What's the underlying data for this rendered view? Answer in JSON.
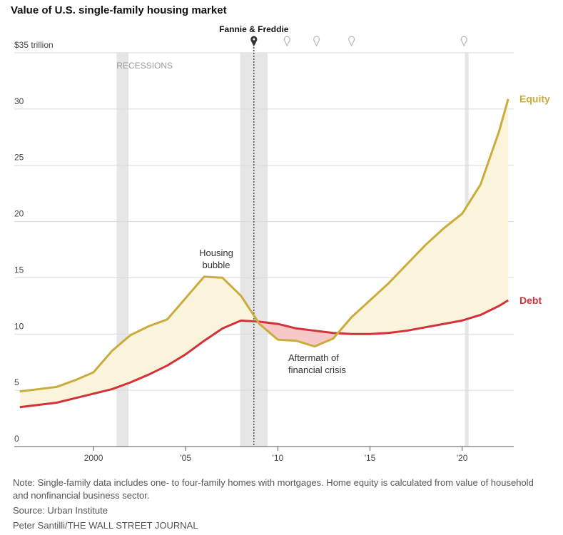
{
  "title": "Value of U.S. single-family housing market",
  "note": "Note: Single-family data includes one- to four-family homes with mortgages. Home equity is calculated from value of household and nonfinancial business sector.",
  "source": "Source: Urban Institute",
  "credit": "Peter Santilli/THE WALL STREET JOURNAL",
  "colors": {
    "equity": "#c9ac3c",
    "debt": "#d23238",
    "equity_fill": "#fbf4dc",
    "deficit_fill": "#f6c9c8",
    "recession": "#e6e6e6",
    "grid": "#d9d9d9"
  },
  "chart_data": {
    "type": "area",
    "title": "Value of U.S. single-family housing market",
    "y_unit_label": "$35 trillion",
    "ylim": [
      0,
      35
    ],
    "xlim": [
      1995.7,
      2022.8
    ],
    "y_ticks": [
      {
        "value": 35,
        "label": "$35 trillion"
      },
      {
        "value": 30,
        "label": "30"
      },
      {
        "value": 25,
        "label": "25"
      },
      {
        "value": 20,
        "label": "20"
      },
      {
        "value": 15,
        "label": "15"
      },
      {
        "value": 10,
        "label": "10"
      },
      {
        "value": 5,
        "label": "5"
      },
      {
        "value": 0,
        "label": "0"
      }
    ],
    "x_ticks": [
      {
        "value": 2000,
        "label": "2000"
      },
      {
        "value": 2005,
        "label": "'05"
      },
      {
        "value": 2010,
        "label": "'10"
      },
      {
        "value": 2015,
        "label": "'15"
      },
      {
        "value": 2020,
        "label": "'20"
      }
    ],
    "grid": true,
    "series": [
      {
        "name": "Equity",
        "x": [
          1996,
          1997,
          1998,
          1999,
          2000,
          2001,
          2002,
          2003,
          2004,
          2005,
          2006,
          2007,
          2008,
          2009,
          2010,
          2011,
          2012,
          2013,
          2014,
          2015,
          2016,
          2017,
          2018,
          2019,
          2020,
          2021,
          2022,
          2022.5
        ],
        "values": [
          4.9,
          5.1,
          5.3,
          5.9,
          6.6,
          8.5,
          9.9,
          10.7,
          11.3,
          13.2,
          15.1,
          15.0,
          13.4,
          10.9,
          9.5,
          9.4,
          8.9,
          9.6,
          11.5,
          13.0,
          14.5,
          16.2,
          17.9,
          19.4,
          20.7,
          23.3,
          28.0,
          30.9
        ]
      },
      {
        "name": "Debt",
        "x": [
          1996,
          1997,
          1998,
          1999,
          2000,
          2001,
          2002,
          2003,
          2004,
          2005,
          2006,
          2007,
          2008,
          2009,
          2010,
          2011,
          2012,
          2013,
          2014,
          2015,
          2016,
          2017,
          2018,
          2019,
          2020,
          2021,
          2022,
          2022.5
        ],
        "values": [
          3.5,
          3.7,
          3.9,
          4.3,
          4.7,
          5.1,
          5.7,
          6.4,
          7.2,
          8.2,
          9.4,
          10.5,
          11.2,
          11.1,
          10.9,
          10.5,
          10.3,
          10.1,
          10.0,
          10.0,
          10.1,
          10.3,
          10.6,
          10.9,
          11.2,
          11.7,
          12.5,
          13.0
        ]
      }
    ],
    "series_labels": [
      {
        "name": "Equity",
        "text": "Equity"
      },
      {
        "name": "Debt",
        "text": "Debt"
      }
    ],
    "recessions": [
      {
        "start": 2001.25,
        "end": 2001.9
      },
      {
        "start": 2007.95,
        "end": 2009.45
      },
      {
        "start": 2020.15,
        "end": 2020.35
      }
    ],
    "recessions_label": "RECESSIONS",
    "events": {
      "highlight": {
        "x": 2008.7,
        "label": "Fannie & Freddie"
      },
      "markers": [
        2010.5,
        2012.1,
        2014.0,
        2020.1
      ]
    },
    "annotations": [
      {
        "lines": [
          "Housing",
          "bubble"
        ]
      },
      {
        "lines": [
          "Aftermath of",
          "financial crisis"
        ]
      }
    ]
  }
}
